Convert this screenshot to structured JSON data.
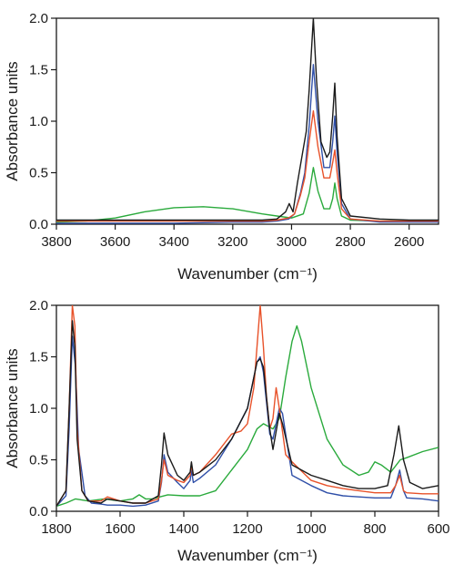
{
  "colors": {
    "black": "#1a1a1a",
    "blue": "#2f4fa8",
    "red": "#e8522a",
    "green": "#2aaa3c"
  },
  "chart_data": [
    {
      "type": "line",
      "xlabel": "Wavenumber (cm⁻¹)",
      "ylabel": "Absorbance units",
      "xlim": [
        3800,
        2500
      ],
      "ylim": [
        0,
        2.0
      ],
      "x_reversed": true,
      "xticks": [
        3800,
        3600,
        3400,
        3200,
        3000,
        2800,
        2600
      ],
      "xtick_labels": [
        "3800",
        "3600",
        "3400",
        "3200",
        "3000",
        "2800",
        "2600"
      ],
      "yticks": [
        0,
        0.5,
        1.0,
        1.5,
        2.0
      ],
      "ytick_labels": [
        "0.0",
        "0.5",
        "1.0",
        "1.5",
        "2.0"
      ],
      "grid": false,
      "series": [
        {
          "color": "#2aaa3c",
          "x": [
            3800,
            3700,
            3600,
            3500,
            3400,
            3300,
            3200,
            3100,
            3050,
            3000,
            2960,
            2940,
            2926,
            2910,
            2890,
            2870,
            2860,
            2853,
            2845,
            2830,
            2800,
            2700,
            2600,
            2500
          ],
          "y": [
            0.02,
            0.03,
            0.06,
            0.12,
            0.16,
            0.17,
            0.15,
            0.1,
            0.08,
            0.06,
            0.1,
            0.3,
            0.55,
            0.32,
            0.15,
            0.15,
            0.25,
            0.4,
            0.25,
            0.08,
            0.04,
            0.03,
            0.03,
            0.03
          ]
        },
        {
          "color": "#2f4fa8",
          "x": [
            3800,
            3600,
            3400,
            3200,
            3100,
            3050,
            3010,
            2990,
            2970,
            2955,
            2940,
            2926,
            2910,
            2890,
            2870,
            2860,
            2853,
            2845,
            2830,
            2800,
            2700,
            2600,
            2500
          ],
          "y": [
            0.01,
            0.01,
            0.01,
            0.02,
            0.02,
            0.03,
            0.05,
            0.1,
            0.3,
            0.5,
            0.95,
            1.55,
            1.0,
            0.55,
            0.55,
            0.8,
            1.05,
            0.7,
            0.2,
            0.05,
            0.02,
            0.02,
            0.02
          ]
        },
        {
          "color": "#e8522a",
          "x": [
            3800,
            3600,
            3400,
            3200,
            3100,
            3050,
            3010,
            2990,
            2970,
            2955,
            2940,
            2926,
            2910,
            2890,
            2870,
            2860,
            2853,
            2845,
            2830,
            2800,
            2700,
            2600,
            2500
          ],
          "y": [
            0.03,
            0.03,
            0.03,
            0.03,
            0.03,
            0.04,
            0.06,
            0.1,
            0.28,
            0.45,
            0.8,
            1.1,
            0.75,
            0.45,
            0.45,
            0.6,
            0.72,
            0.5,
            0.15,
            0.05,
            0.03,
            0.03,
            0.03
          ]
        },
        {
          "color": "#1a1a1a",
          "x": [
            3800,
            3600,
            3400,
            3200,
            3100,
            3050,
            3020,
            3008,
            2995,
            2980,
            2962,
            2950,
            2940,
            2926,
            2915,
            2900,
            2880,
            2870,
            2860,
            2853,
            2845,
            2830,
            2800,
            2700,
            2600,
            2500
          ],
          "y": [
            0.04,
            0.04,
            0.04,
            0.04,
            0.04,
            0.05,
            0.12,
            0.2,
            0.12,
            0.4,
            0.7,
            0.9,
            1.3,
            2.0,
            1.4,
            0.8,
            0.65,
            0.7,
            1.05,
            1.37,
            0.85,
            0.25,
            0.08,
            0.05,
            0.04,
            0.04
          ]
        }
      ]
    },
    {
      "type": "line",
      "xlabel": "Wavenumber (cm⁻¹)",
      "ylabel": "Absorbance units",
      "xlim": [
        1800,
        600
      ],
      "ylim": [
        0,
        2.0
      ],
      "x_reversed": true,
      "xticks": [
        1800,
        1600,
        1400,
        1200,
        1000,
        800,
        600
      ],
      "xtick_labels": [
        "1800",
        "1600",
        "1400",
        "1200",
        "1000",
        "800",
        "600"
      ],
      "yticks": [
        0,
        0.5,
        1.0,
        1.5,
        2.0
      ],
      "ytick_labels": [
        "0.0",
        "0.5",
        "1.0",
        "1.5",
        "2.0"
      ],
      "grid": false,
      "series": [
        {
          "color": "#2aaa3c",
          "x": [
            1800,
            1770,
            1740,
            1700,
            1650,
            1600,
            1560,
            1540,
            1520,
            1500,
            1450,
            1400,
            1350,
            1300,
            1250,
            1200,
            1170,
            1150,
            1120,
            1100,
            1080,
            1060,
            1045,
            1030,
            1000,
            950,
            900,
            850,
            820,
            800,
            780,
            750,
            720,
            700,
            650,
            600
          ],
          "y": [
            0.05,
            0.08,
            0.12,
            0.1,
            0.12,
            0.1,
            0.12,
            0.16,
            0.12,
            0.12,
            0.16,
            0.15,
            0.15,
            0.2,
            0.4,
            0.6,
            0.8,
            0.85,
            0.8,
            0.9,
            1.3,
            1.65,
            1.8,
            1.65,
            1.2,
            0.7,
            0.45,
            0.35,
            0.38,
            0.48,
            0.45,
            0.38,
            0.5,
            0.52,
            0.58,
            0.62
          ]
        },
        {
          "color": "#2f4fa8",
          "x": [
            1800,
            1770,
            1760,
            1750,
            1740,
            1730,
            1710,
            1690,
            1660,
            1640,
            1600,
            1560,
            1520,
            1480,
            1470,
            1462,
            1450,
            1420,
            1400,
            1380,
            1376,
            1370,
            1350,
            1300,
            1250,
            1200,
            1170,
            1160,
            1150,
            1130,
            1120,
            1100,
            1090,
            1060,
            1000,
            950,
            900,
            850,
            800,
            750,
            735,
            722,
            710,
            700,
            650,
            600
          ],
          "y": [
            0.05,
            0.15,
            0.8,
            1.7,
            1.4,
            0.6,
            0.15,
            0.08,
            0.07,
            0.06,
            0.06,
            0.05,
            0.06,
            0.1,
            0.28,
            0.55,
            0.38,
            0.28,
            0.22,
            0.3,
            0.4,
            0.28,
            0.32,
            0.45,
            0.7,
            1.0,
            1.45,
            1.5,
            1.35,
            0.75,
            0.7,
            1.0,
            0.95,
            0.35,
            0.25,
            0.18,
            0.15,
            0.14,
            0.13,
            0.13,
            0.25,
            0.4,
            0.2,
            0.13,
            0.12,
            0.1
          ]
        },
        {
          "color": "#e8522a",
          "x": [
            1800,
            1770,
            1760,
            1750,
            1742,
            1735,
            1720,
            1700,
            1660,
            1640,
            1600,
            1560,
            1520,
            1480,
            1470,
            1462,
            1450,
            1420,
            1400,
            1380,
            1376,
            1370,
            1350,
            1300,
            1250,
            1220,
            1200,
            1180,
            1170,
            1160,
            1150,
            1140,
            1130,
            1120,
            1110,
            1100,
            1080,
            1060,
            1000,
            950,
            900,
            850,
            800,
            750,
            735,
            722,
            710,
            700,
            650,
            600
          ],
          "y": [
            0.05,
            0.2,
            1.0,
            2.0,
            1.8,
            0.8,
            0.2,
            0.1,
            0.1,
            0.14,
            0.1,
            0.08,
            0.08,
            0.12,
            0.3,
            0.5,
            0.35,
            0.3,
            0.28,
            0.35,
            0.45,
            0.35,
            0.38,
            0.55,
            0.75,
            0.78,
            0.85,
            1.2,
            1.6,
            2.0,
            1.6,
            1.1,
            0.8,
            0.9,
            1.2,
            1.0,
            0.55,
            0.48,
            0.3,
            0.25,
            0.22,
            0.2,
            0.18,
            0.18,
            0.25,
            0.35,
            0.2,
            0.18,
            0.17,
            0.17
          ]
        },
        {
          "color": "#1a1a1a",
          "x": [
            1800,
            1770,
            1760,
            1750,
            1742,
            1735,
            1720,
            1700,
            1660,
            1640,
            1600,
            1560,
            1520,
            1480,
            1470,
            1462,
            1450,
            1420,
            1400,
            1380,
            1376,
            1370,
            1350,
            1300,
            1250,
            1200,
            1170,
            1160,
            1150,
            1130,
            1120,
            1100,
            1090,
            1060,
            1000,
            950,
            900,
            850,
            800,
            760,
            740,
            725,
            710,
            690,
            650,
            600
          ],
          "y": [
            0.05,
            0.2,
            1.0,
            1.85,
            1.6,
            0.7,
            0.2,
            0.1,
            0.08,
            0.12,
            0.1,
            0.08,
            0.08,
            0.15,
            0.45,
            0.76,
            0.55,
            0.35,
            0.3,
            0.38,
            0.48,
            0.35,
            0.38,
            0.5,
            0.7,
            1.0,
            1.45,
            1.48,
            1.4,
            0.8,
            0.6,
            0.95,
            0.85,
            0.45,
            0.35,
            0.3,
            0.25,
            0.22,
            0.22,
            0.25,
            0.55,
            0.83,
            0.5,
            0.28,
            0.22,
            0.25
          ]
        }
      ]
    }
  ]
}
